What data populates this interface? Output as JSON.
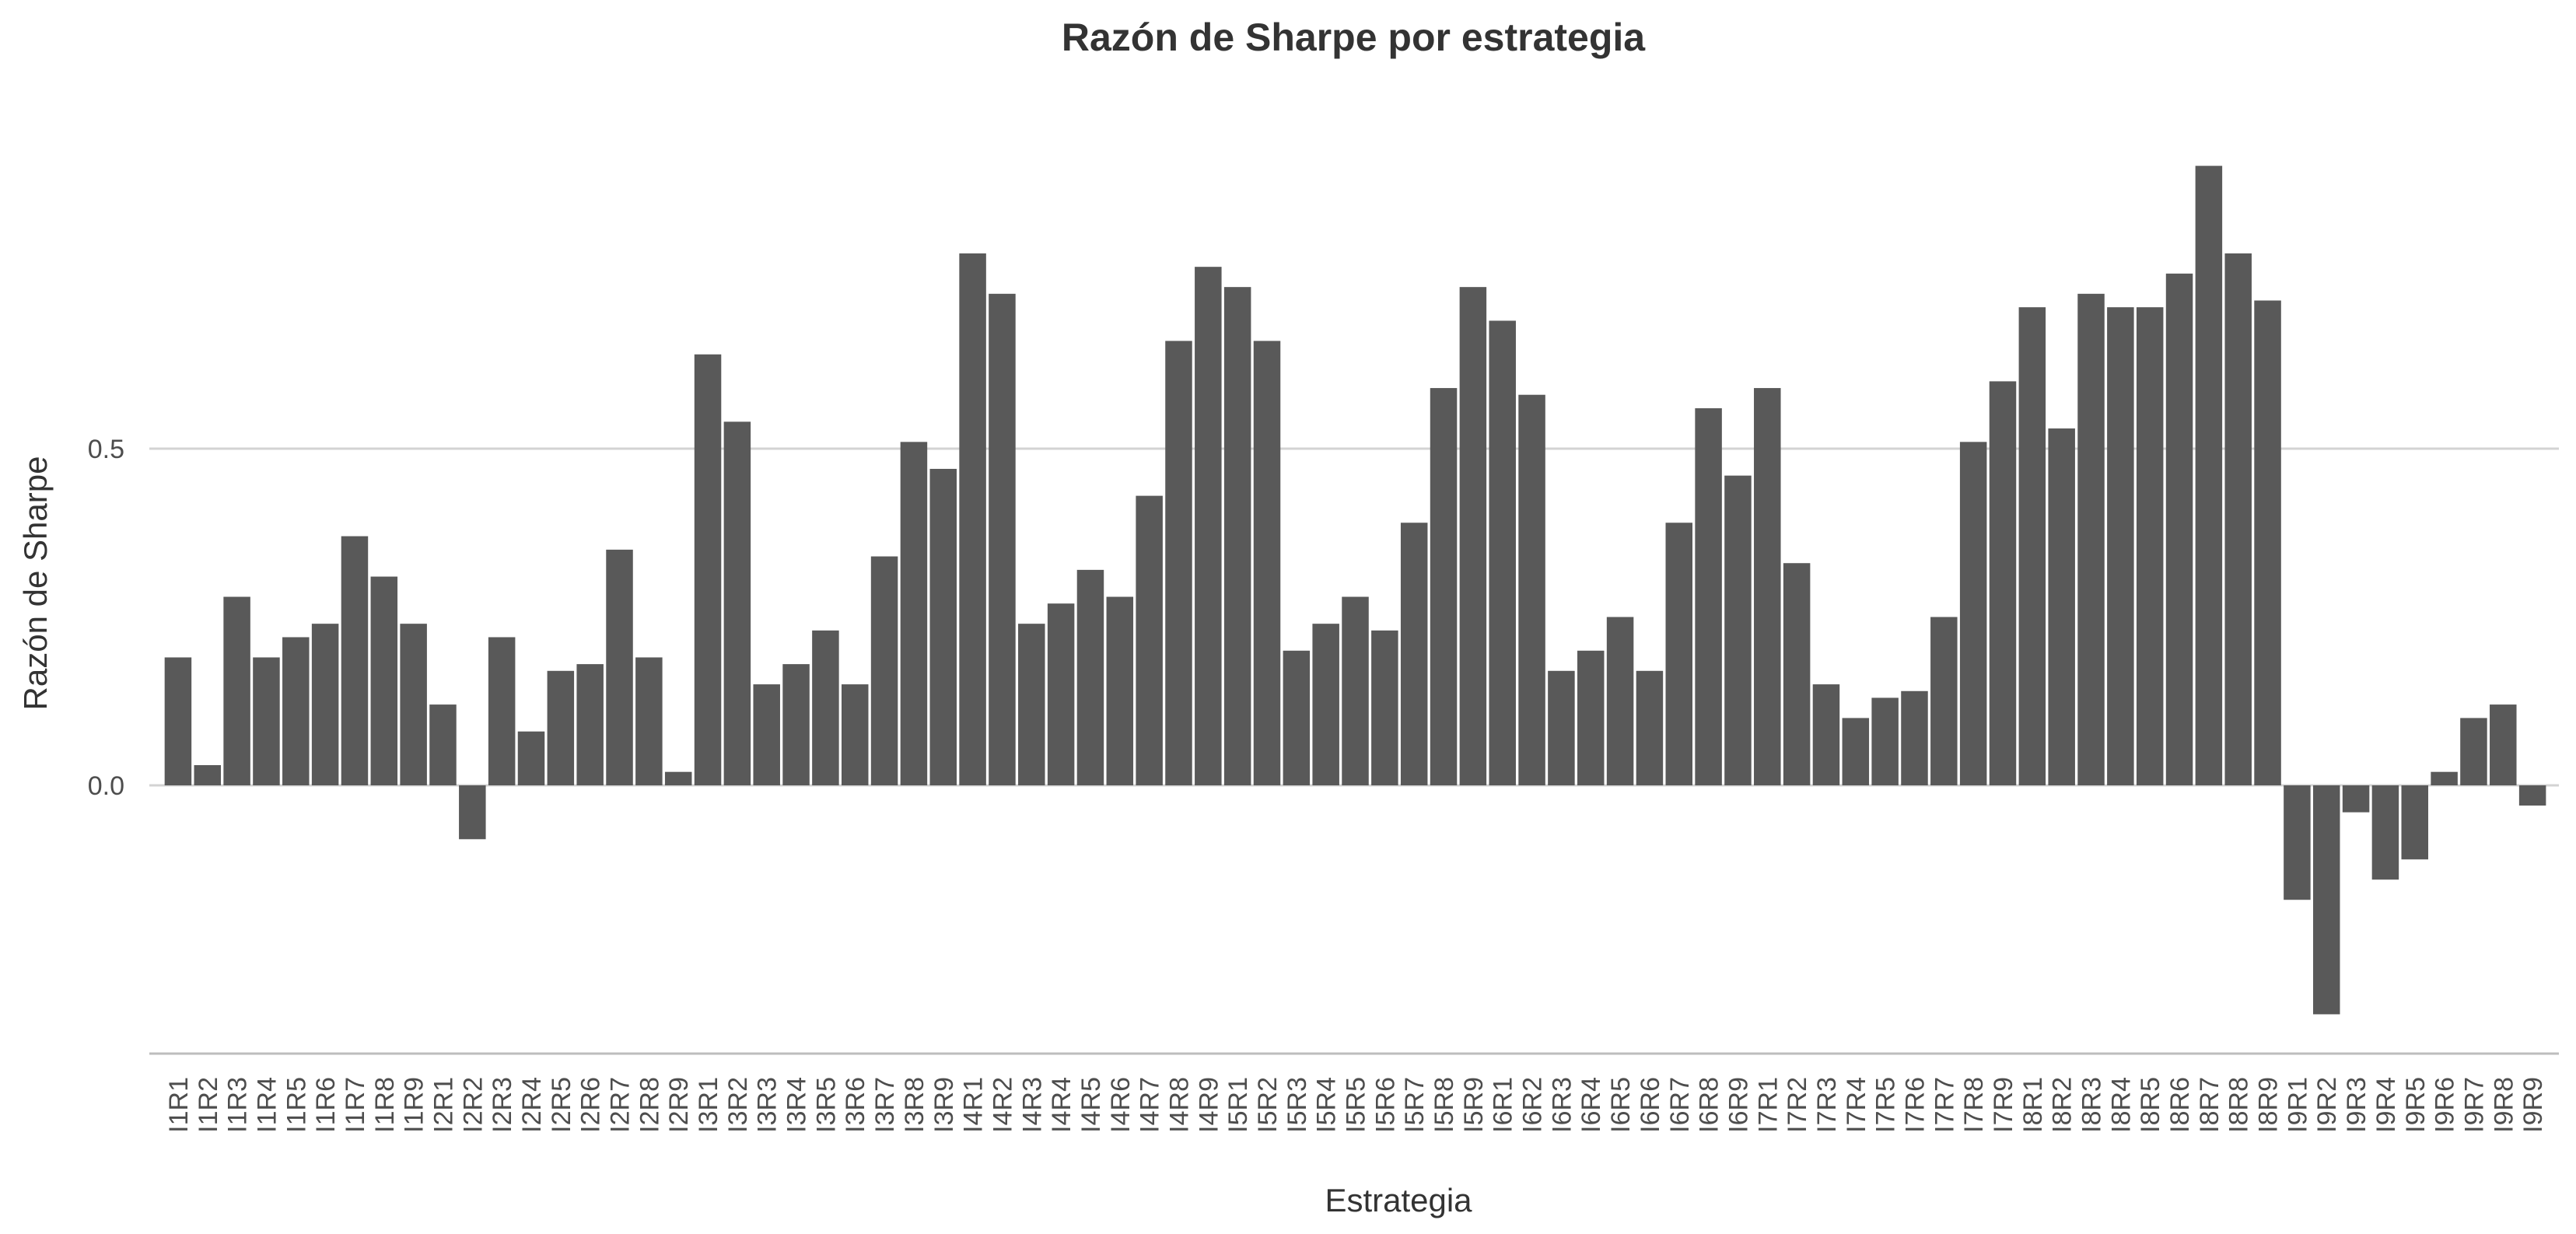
{
  "chart_data": {
    "type": "bar",
    "title": "Razón de Sharpe por estrategia",
    "xlabel": "Estrategia",
    "ylabel": "Razón de Sharpe",
    "yticks": [
      0.0,
      0.5
    ],
    "ytick_labels": [
      "0.0",
      "0.5"
    ],
    "ylim": [
      -0.4,
      0.93
    ],
    "grid": "horizontal major lines",
    "bar_color": "#595959",
    "grid_color": "#d3d3d3",
    "categories": [
      "I1R1",
      "I1R2",
      "I1R3",
      "I1R4",
      "I1R5",
      "I1R6",
      "I1R7",
      "I1R8",
      "I1R9",
      "I2R1",
      "I2R2",
      "I2R3",
      "I2R4",
      "I2R5",
      "I2R6",
      "I2R7",
      "I2R8",
      "I2R9",
      "I3R1",
      "I3R2",
      "I3R3",
      "I3R4",
      "I3R5",
      "I3R6",
      "I3R7",
      "I3R8",
      "I3R9",
      "I4R1",
      "I4R2",
      "I4R3",
      "I4R4",
      "I4R5",
      "I4R6",
      "I4R7",
      "I4R8",
      "I4R9",
      "I5R1",
      "I5R2",
      "I5R3",
      "I5R4",
      "I5R5",
      "I5R6",
      "I5R7",
      "I5R8",
      "I5R9",
      "I6R1",
      "I6R2",
      "I6R3",
      "I6R4",
      "I6R5",
      "I6R6",
      "I6R7",
      "I6R8",
      "I6R9",
      "I7R1",
      "I7R2",
      "I7R3",
      "I7R4",
      "I7R5",
      "I7R6",
      "I7R7",
      "I7R8",
      "I7R9",
      "I8R1",
      "I8R2",
      "I8R3",
      "I8R4",
      "I8R5",
      "I8R6",
      "I8R7",
      "I8R8",
      "I8R9",
      "I9R1",
      "I9R2",
      "I9R3",
      "I9R4",
      "I9R5",
      "I9R6",
      "I9R7",
      "I9R8",
      "I9R9"
    ],
    "values": [
      0.19,
      0.03,
      0.28,
      0.19,
      0.22,
      0.24,
      0.37,
      0.31,
      0.24,
      0.12,
      -0.08,
      0.22,
      0.08,
      0.17,
      0.18,
      0.35,
      0.19,
      0.02,
      0.64,
      0.54,
      0.15,
      0.18,
      0.23,
      0.15,
      0.34,
      0.51,
      0.47,
      0.79,
      0.73,
      0.24,
      0.27,
      0.32,
      0.28,
      0.43,
      0.66,
      0.77,
      0.74,
      0.66,
      0.2,
      0.24,
      0.28,
      0.23,
      0.39,
      0.59,
      0.74,
      0.69,
      0.58,
      0.17,
      0.2,
      0.25,
      0.17,
      0.39,
      0.56,
      0.46,
      0.59,
      0.33,
      0.15,
      0.1,
      0.13,
      0.14,
      0.25,
      0.51,
      0.6,
      0.71,
      0.53,
      0.73,
      0.71,
      0.71,
      0.76,
      0.92,
      0.79,
      0.72,
      -0.17,
      -0.34,
      -0.04,
      -0.14,
      -0.11,
      0.02,
      0.1,
      0.12,
      -0.03
    ]
  }
}
